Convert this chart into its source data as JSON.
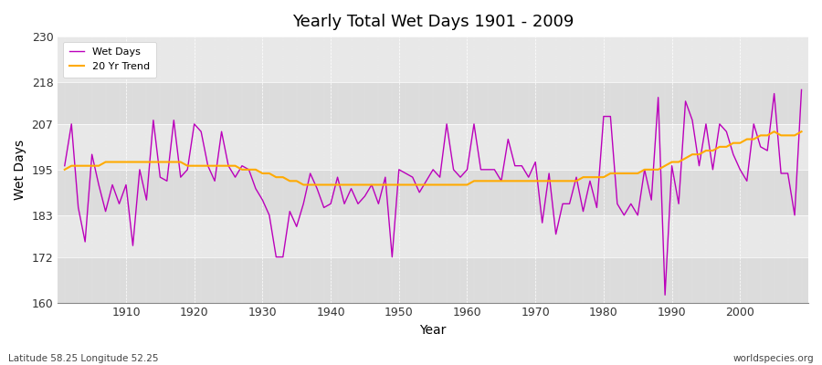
{
  "title": "Yearly Total Wet Days 1901 - 2009",
  "xlabel": "Year",
  "ylabel": "Wet Days",
  "lat_lon_label": "Latitude 58.25 Longitude 52.25",
  "watermark": "worldspecies.org",
  "ylim": [
    160,
    230
  ],
  "yticks": [
    160,
    172,
    183,
    195,
    207,
    218,
    230
  ],
  "line_color": "#bb00bb",
  "trend_color": "#ffaa00",
  "bg_color": "#e0e0e0",
  "bg_band1": "#dcdcdc",
  "bg_band2": "#e8e8e8",
  "years": [
    1901,
    1902,
    1903,
    1904,
    1905,
    1906,
    1907,
    1908,
    1909,
    1910,
    1911,
    1912,
    1913,
    1914,
    1915,
    1916,
    1917,
    1918,
    1919,
    1920,
    1921,
    1922,
    1923,
    1924,
    1925,
    1926,
    1927,
    1928,
    1929,
    1930,
    1931,
    1932,
    1933,
    1934,
    1935,
    1936,
    1937,
    1938,
    1939,
    1940,
    1941,
    1942,
    1943,
    1944,
    1945,
    1946,
    1947,
    1948,
    1949,
    1950,
    1951,
    1952,
    1953,
    1954,
    1955,
    1956,
    1957,
    1958,
    1959,
    1960,
    1961,
    1962,
    1963,
    1964,
    1965,
    1966,
    1967,
    1968,
    1969,
    1970,
    1971,
    1972,
    1973,
    1974,
    1975,
    1976,
    1977,
    1978,
    1979,
    1980,
    1981,
    1982,
    1983,
    1984,
    1985,
    1986,
    1987,
    1988,
    1989,
    1990,
    1991,
    1992,
    1993,
    1994,
    1995,
    1996,
    1997,
    1998,
    1999,
    2000,
    2001,
    2002,
    2003,
    2004,
    2005,
    2006,
    2007,
    2008,
    2009
  ],
  "wet_days": [
    196,
    207,
    185,
    176,
    199,
    191,
    184,
    191,
    186,
    191,
    175,
    195,
    187,
    208,
    193,
    192,
    208,
    193,
    195,
    207,
    205,
    196,
    192,
    205,
    196,
    193,
    196,
    195,
    190,
    187,
    183,
    172,
    172,
    184,
    180,
    186,
    194,
    190,
    185,
    186,
    193,
    186,
    190,
    186,
    188,
    191,
    186,
    193,
    172,
    195,
    194,
    193,
    189,
    192,
    195,
    193,
    207,
    195,
    193,
    195,
    207,
    195,
    195,
    195,
    192,
    203,
    196,
    196,
    193,
    197,
    181,
    194,
    178,
    186,
    186,
    193,
    184,
    192,
    185,
    209,
    209,
    186,
    183,
    186,
    183,
    195,
    187,
    214,
    162,
    196,
    186,
    213,
    208,
    196,
    207,
    195,
    207,
    205,
    199,
    195,
    192,
    207,
    201,
    200,
    215,
    194,
    194,
    183,
    216
  ],
  "trend": [
    195,
    196,
    196,
    196,
    196,
    196,
    197,
    197,
    197,
    197,
    197,
    197,
    197,
    197,
    197,
    197,
    197,
    197,
    196,
    196,
    196,
    196,
    196,
    196,
    196,
    196,
    195,
    195,
    195,
    194,
    194,
    193,
    193,
    192,
    192,
    191,
    191,
    191,
    191,
    191,
    191,
    191,
    191,
    191,
    191,
    191,
    191,
    191,
    191,
    191,
    191,
    191,
    191,
    191,
    191,
    191,
    191,
    191,
    191,
    191,
    192,
    192,
    192,
    192,
    192,
    192,
    192,
    192,
    192,
    192,
    192,
    192,
    192,
    192,
    192,
    192,
    193,
    193,
    193,
    193,
    194,
    194,
    194,
    194,
    194,
    195,
    195,
    195,
    196,
    197,
    197,
    198,
    199,
    199,
    200,
    200,
    201,
    201,
    202,
    202,
    203,
    203,
    204,
    204,
    205,
    204,
    204,
    204,
    205
  ]
}
